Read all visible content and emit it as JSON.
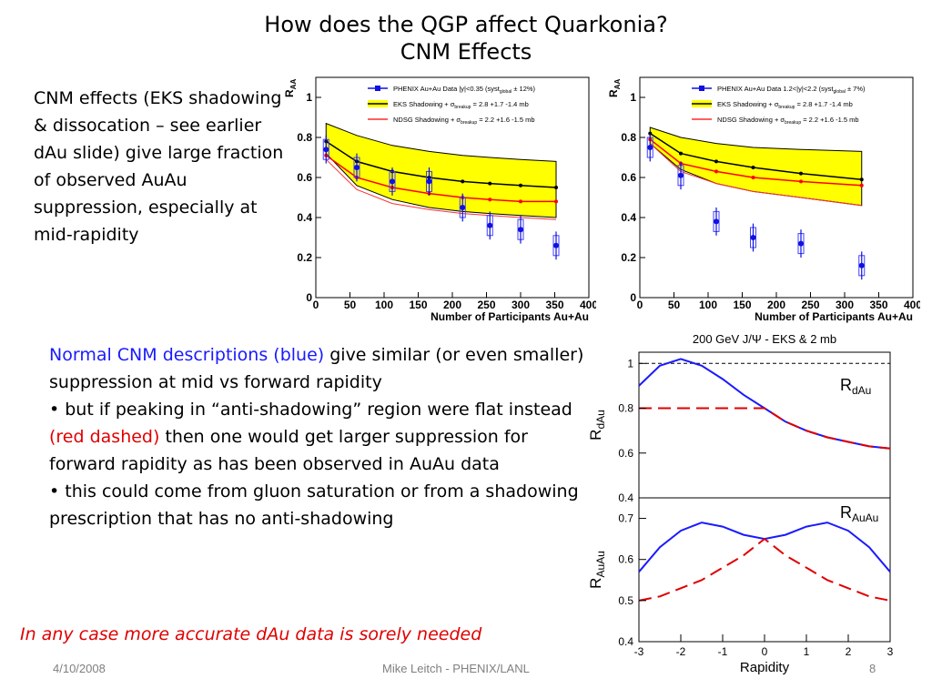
{
  "slide": {
    "title_line1": "How does the QGP affect Quarkonia?",
    "title_line2": "CNM Effects",
    "left_text": "CNM effects (EKS shadowing & dissocation – see earlier dAu slide) give large fraction of observed AuAu suppression, especially at mid-rapidity",
    "mid_text": {
      "blue_part": "Normal CNM descriptions (blue)",
      "p1_rest": " give similar (or even smaller) suppression at mid vs forward rapidity",
      "b1_prefix": "• but if peaking in “anti-shadowing” region were flat instead ",
      "b1_red": "(red dashed)",
      "b1_rest": " then one would get larger suppression for forward rapidity as has been observed in AuAu data",
      "b2": "• this could come from gluon saturation or from a shadowing prescription that has no anti-shadowing"
    },
    "final_note": "In any case more accurate dAu data is sorely needed",
    "footer": {
      "date": "4/10/2008",
      "author": "Mike Leitch - PHENIX/LANL",
      "page": "8"
    }
  },
  "colors": {
    "blue_text": "#1a1aff",
    "red_text": "#e00000",
    "band": "#ffff00",
    "data_blue": "#1010e0"
  },
  "chart_data": [
    {
      "type": "scatter",
      "title": "",
      "xlabel": "Number of Participants Au+Au",
      "ylabel": "R_AA",
      "xlim": [
        0,
        400
      ],
      "ylim": [
        0,
        1.1
      ],
      "xticks": [
        "0",
        "50",
        "100",
        "150",
        "200",
        "250",
        "300",
        "350",
        "400"
      ],
      "yticks": [
        "0",
        "0.2",
        "0.4",
        "0.6",
        "0.8",
        "1"
      ],
      "legend": [
        "PHENIX Au+Au Data |y|<0.35 (syst_global ± 12%)",
        "EKS Shadowing + σ_breakup = 2.8 +1.7 -1.4 mb",
        "NDSG Shadowing + σ_breakup = 2.2 +1.6 -1.5 mb"
      ],
      "data": {
        "x": [
          15,
          60,
          112,
          166,
          215,
          255,
          300,
          352
        ],
        "y": [
          0.74,
          0.65,
          0.58,
          0.58,
          0.45,
          0.36,
          0.34,
          0.26
        ]
      },
      "eks": {
        "x": [
          15,
          60,
          112,
          166,
          215,
          255,
          300,
          352
        ],
        "y": [
          0.78,
          0.68,
          0.63,
          0.6,
          0.58,
          0.57,
          0.56,
          0.55
        ]
      },
      "eks_lo": {
        "x": [
          15,
          60,
          112,
          166,
          215,
          255,
          300,
          352
        ],
        "y": [
          0.72,
          0.56,
          0.49,
          0.45,
          0.43,
          0.42,
          0.41,
          0.4
        ]
      },
      "eks_hi": {
        "x": [
          15,
          60,
          112,
          166,
          215,
          255,
          300,
          352
        ],
        "y": [
          0.87,
          0.81,
          0.76,
          0.73,
          0.71,
          0.7,
          0.69,
          0.68
        ]
      },
      "ndsg": {
        "x": [
          15,
          60,
          112,
          166,
          215,
          255,
          300,
          352
        ],
        "y": [
          0.71,
          0.6,
          0.55,
          0.52,
          0.5,
          0.49,
          0.48,
          0.48
        ]
      },
      "ndsg_lo": {
        "x": [
          15,
          60,
          112,
          166,
          215,
          255,
          300,
          352
        ],
        "y": [
          0.69,
          0.54,
          0.47,
          0.44,
          0.42,
          0.41,
          0.4,
          0.39
        ]
      }
    },
    {
      "type": "scatter",
      "title": "",
      "xlabel": "Number of Participants Au+Au",
      "ylabel": "R_AA",
      "xlim": [
        0,
        400
      ],
      "ylim": [
        0,
        1.1
      ],
      "xticks": [
        "0",
        "50",
        "100",
        "150",
        "200",
        "250",
        "300",
        "350",
        "400"
      ],
      "yticks": [
        "0",
        "0.2",
        "0.4",
        "0.6",
        "0.8",
        "1"
      ],
      "legend": [
        "PHENIX Au+Au Data 1.2<|y|<2.2 (syst_global ± 7%)",
        "EKS Shadowing + σ_breakup = 2.8 +1.7 -1.4 mb",
        "NDSG Shadowing + σ_breakup = 2.2 +1.6 -1.5 mb"
      ],
      "data": {
        "x": [
          15,
          60,
          112,
          166,
          236,
          325
        ],
        "y": [
          0.75,
          0.61,
          0.38,
          0.3,
          0.27,
          0.16
        ]
      },
      "eks": {
        "x": [
          15,
          60,
          112,
          166,
          236,
          325
        ],
        "y": [
          0.82,
          0.72,
          0.68,
          0.65,
          0.62,
          0.59
        ]
      },
      "eks_lo": {
        "x": [
          15,
          60,
          112,
          166,
          236,
          325
        ],
        "y": [
          0.77,
          0.64,
          0.57,
          0.53,
          0.5,
          0.46
        ]
      },
      "eks_hi": {
        "x": [
          15,
          60,
          112,
          166,
          236,
          325
        ],
        "y": [
          0.85,
          0.8,
          0.77,
          0.75,
          0.74,
          0.73
        ]
      },
      "ndsg": {
        "x": [
          15,
          60,
          112,
          166,
          236,
          325
        ],
        "y": [
          0.79,
          0.67,
          0.63,
          0.6,
          0.58,
          0.56
        ]
      },
      "ndsg_lo": {
        "x": [
          15,
          60,
          112,
          166,
          236,
          325
        ],
        "y": [
          0.77,
          0.63,
          0.57,
          0.53,
          0.5,
          0.46
        ]
      }
    },
    {
      "type": "line",
      "title": "200 GeV J/Ψ - EKS & 2 mb",
      "panels": [
        {
          "label": "R_dAu",
          "ylabel": "R_dAu",
          "ylim": [
            0.4,
            1.05
          ],
          "yticks": [
            "0.4",
            "0.6",
            "0.8",
            "1"
          ],
          "reference_line": 1,
          "series": [
            {
              "style": "solid-blue",
              "x": [
                -3,
                -2.5,
                -2,
                -1.5,
                -1,
                -0.5,
                0,
                0.5,
                1,
                1.5,
                2,
                2.5,
                3
              ],
              "y": [
                0.9,
                0.99,
                1.02,
                0.99,
                0.93,
                0.86,
                0.8,
                0.74,
                0.7,
                0.67,
                0.65,
                0.63,
                0.62
              ]
            },
            {
              "style": "dashed-red",
              "x": [
                -3,
                -2.5,
                -2,
                -1.5,
                -1,
                -0.5,
                0,
                0.5,
                1,
                1.5,
                2,
                2.5,
                3
              ],
              "y": [
                0.8,
                0.8,
                0.8,
                0.8,
                0.8,
                0.8,
                0.8,
                0.74,
                0.7,
                0.67,
                0.65,
                0.63,
                0.62
              ]
            }
          ]
        },
        {
          "label": "R_AuAu",
          "ylabel": "R_AuAu",
          "ylim": [
            0.4,
            0.75
          ],
          "yticks": [
            "0.4",
            "0.5",
            "0.6",
            "0.7"
          ],
          "series": [
            {
              "style": "solid-blue",
              "x": [
                -3,
                -2.5,
                -2,
                -1.5,
                -1,
                -0.5,
                0,
                0.5,
                1,
                1.5,
                2,
                2.5,
                3
              ],
              "y": [
                0.57,
                0.63,
                0.67,
                0.69,
                0.68,
                0.66,
                0.65,
                0.66,
                0.68,
                0.69,
                0.67,
                0.63,
                0.57
              ]
            },
            {
              "style": "dashed-red",
              "x": [
                -3,
                -2.5,
                -2,
                -1.5,
                -1,
                -0.5,
                0,
                0.5,
                1,
                1.5,
                2,
                2.5,
                3
              ],
              "y": [
                0.5,
                0.51,
                0.53,
                0.55,
                0.58,
                0.61,
                0.65,
                0.61,
                0.58,
                0.55,
                0.53,
                0.51,
                0.5
              ]
            }
          ]
        }
      ],
      "xlabel": "Rapidity",
      "xlim": [
        -3,
        3
      ],
      "xticks": [
        "-3",
        "-2",
        "-1",
        "0",
        "1",
        "2",
        "3"
      ]
    }
  ]
}
